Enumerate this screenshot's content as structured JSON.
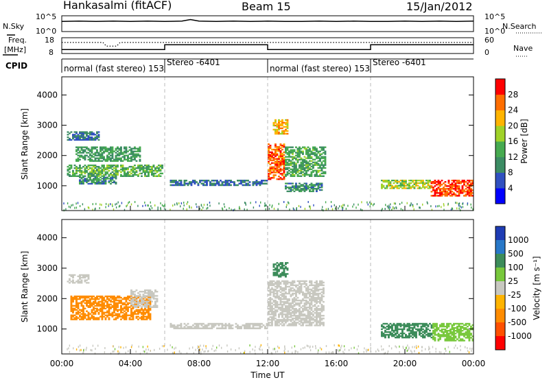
{
  "header": {
    "station": "Hankasalmi (fitACF)",
    "beam": "Beam 15",
    "date": "15/Jan/2012"
  },
  "chart_data": [
    {
      "type": "line",
      "panel": "noise",
      "left_label": "N.Sky",
      "right_label": "N.Search",
      "left_ticks": [
        "10^5",
        "10^0"
      ],
      "right_ticks": [
        "10^5",
        "10^0"
      ],
      "x_hours": [
        0,
        1,
        2,
        3,
        4,
        5,
        6,
        7,
        7.5,
        8,
        9,
        10,
        11,
        12,
        13,
        14,
        15,
        16,
        17,
        18,
        19,
        20,
        21,
        22,
        23,
        24
      ],
      "n_sky": [
        3.2,
        3.3,
        3.2,
        3.3,
        3.2,
        3.3,
        3.2,
        3.3,
        3.8,
        3.3,
        3.2,
        3.3,
        3.2,
        3.3,
        3.2,
        3.2,
        3.3,
        3.2,
        3.3,
        3.2,
        3.2,
        3.3,
        3.2,
        3.3,
        3.2,
        3.3
      ]
    },
    {
      "type": "line",
      "panel": "frequency",
      "left_label": "Freq.",
      "left_unit": "[MHz]",
      "right_label": "Nave",
      "left_ticks": [
        "18",
        "8"
      ],
      "right_ticks": [
        "60",
        "0"
      ],
      "segments": [
        {
          "start": 0,
          "end": 6,
          "freq_mhz": 10.5,
          "nave": 42
        },
        {
          "start": 6,
          "end": 12,
          "freq_mhz": 13.5,
          "nave": 42
        },
        {
          "start": 12,
          "end": 18,
          "freq_mhz": 10.5,
          "nave": 42
        },
        {
          "start": 18,
          "end": 24,
          "freq_mhz": 13.5,
          "nave": 42
        }
      ],
      "nave_dip": {
        "start": 2.4,
        "end": 3.4,
        "nave": 28
      }
    },
    {
      "type": "table",
      "panel": "cpid",
      "label": "CPID",
      "segments": [
        {
          "start": 0,
          "end": 6,
          "text": "normal (fast stereo) 153"
        },
        {
          "start": 6,
          "end": 12,
          "text": "Stereo -6401"
        },
        {
          "start": 12,
          "end": 18,
          "text": "normal (fast stereo) 153"
        },
        {
          "start": 18,
          "end": 24,
          "text": "Stereo -6401"
        }
      ]
    },
    {
      "type": "heatmap",
      "panel": "power",
      "ylabel": "Slant Range [km]",
      "ylim": [
        180,
        4600
      ],
      "xlim": [
        0,
        24
      ],
      "yticks": [
        1000,
        2000,
        3000,
        4000
      ],
      "colorbar": {
        "label": "Power [dB]",
        "ticks": [
          "4",
          "8",
          "12",
          "16",
          "20",
          "24",
          "28"
        ],
        "colors": [
          "#0000ff",
          "#3050c0",
          "#3c8c64",
          "#46aa50",
          "#a0d228",
          "#ffb400",
          "#ff6e00",
          "#ff0000"
        ]
      },
      "regions": [
        {
          "t0": 0.3,
          "t1": 5.9,
          "r0": 1300,
          "r1": 1700,
          "value": 14
        },
        {
          "t0": 0.3,
          "t1": 2.2,
          "r0": 2500,
          "r1": 2800,
          "value": 8
        },
        {
          "t0": 0.8,
          "t1": 4.6,
          "r0": 1800,
          "r1": 2300,
          "value": 12
        },
        {
          "t0": 1.0,
          "t1": 3.2,
          "r0": 1050,
          "r1": 1300,
          "value": 10
        },
        {
          "t0": 6.3,
          "t1": 12.0,
          "r0": 1000,
          "r1": 1200,
          "value": 8
        },
        {
          "t0": 12.0,
          "t1": 13.0,
          "r0": 1200,
          "r1": 2400,
          "value": 27
        },
        {
          "t0": 12.3,
          "t1": 13.2,
          "r0": 2700,
          "r1": 3200,
          "value": 22
        },
        {
          "t0": 13.0,
          "t1": 15.4,
          "r0": 1300,
          "r1": 2300,
          "value": 13
        },
        {
          "t0": 13.0,
          "t1": 15.2,
          "r0": 800,
          "r1": 1100,
          "value": 10
        },
        {
          "t0": 18.6,
          "t1": 21.5,
          "r0": 900,
          "r1": 1200,
          "value": 18
        },
        {
          "t0": 21.5,
          "t1": 24.0,
          "r0": 650,
          "r1": 1200,
          "value": 28
        }
      ]
    },
    {
      "type": "heatmap",
      "panel": "velocity",
      "ylabel": "Slant Range [km]",
      "ylim": [
        180,
        4600
      ],
      "xlim": [
        0,
        24
      ],
      "yticks": [
        1000,
        2000,
        3000,
        4000
      ],
      "xticks": [
        "00:00",
        "04:00",
        "08:00",
        "12:00",
        "16:00",
        "20:00",
        "00:00"
      ],
      "xlabel": "Time UT",
      "colorbar": {
        "label": "Velocity [m s⁻¹]",
        "ticks": [
          "1000",
          "500",
          "100",
          "25",
          "-25",
          "-100",
          "-500",
          "-1000"
        ],
        "colors": [
          "#1e3cb4",
          "#2878c8",
          "#3c8c5a",
          "#78c83c",
          "#c8c8c0",
          "#ffb400",
          "#ff8c00",
          "#ff5000",
          "#ff0000"
        ]
      },
      "regions": [
        {
          "t0": 0.3,
          "t1": 1.6,
          "r0": 2500,
          "r1": 2800,
          "value": 0
        },
        {
          "t0": 0.5,
          "t1": 5.2,
          "r0": 1300,
          "r1": 2100,
          "value": -200
        },
        {
          "t0": 4.0,
          "t1": 5.6,
          "r0": 1700,
          "r1": 2300,
          "value": 0
        },
        {
          "t0": 6.3,
          "t1": 12.0,
          "r0": 1000,
          "r1": 1200,
          "value": 0
        },
        {
          "t0": 12.0,
          "t1": 15.3,
          "r0": 1100,
          "r1": 2600,
          "value": 0
        },
        {
          "t0": 12.3,
          "t1": 13.2,
          "r0": 2700,
          "r1": 3200,
          "value": 200
        },
        {
          "t0": 18.6,
          "t1": 21.6,
          "r0": 700,
          "r1": 1200,
          "value": 400
        },
        {
          "t0": 21.6,
          "t1": 24.0,
          "r0": 600,
          "r1": 1200,
          "value": 80
        }
      ]
    }
  ]
}
